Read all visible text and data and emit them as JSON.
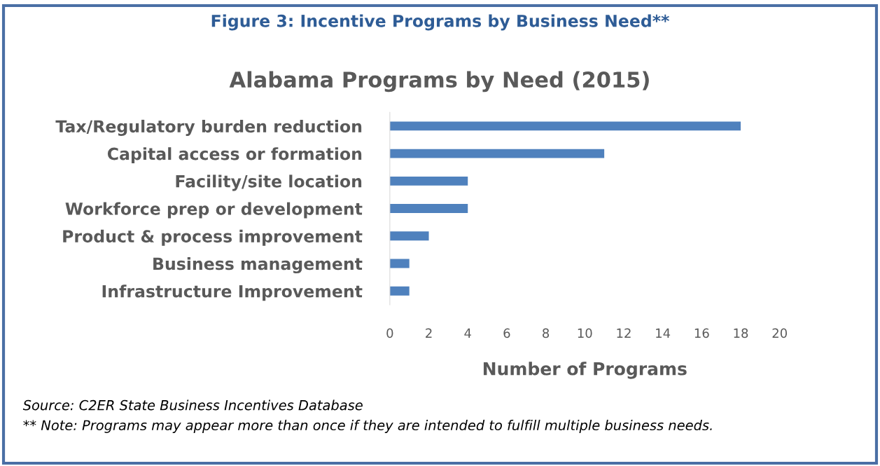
{
  "chart_data": {
    "type": "bar",
    "orientation": "horizontal",
    "title": "Figure 3: Incentive Programs by Business Need**",
    "subtitle": "Alabama Programs by Need (2015)",
    "xlabel": "Number of Programs",
    "categories": [
      "Tax/Regulatory burden reduction",
      "Capital access or formation",
      "Facility/site location",
      "Workforce prep or development",
      "Product & process improvement",
      "Business management",
      "Infrastructure Improvement"
    ],
    "values": [
      18,
      11,
      4,
      4,
      2,
      1,
      1
    ],
    "color": "#4f81bd",
    "xlim": [
      0,
      20
    ],
    "xticks": [
      0,
      2,
      4,
      6,
      8,
      10,
      12,
      14,
      16,
      18,
      20
    ],
    "grid": false,
    "legend": false,
    "annotations": [
      "Source: C2ER State Business Incentives Database",
      "** Note: Programs may appear more than once if they are intended to fulfill multiple business needs."
    ]
  }
}
